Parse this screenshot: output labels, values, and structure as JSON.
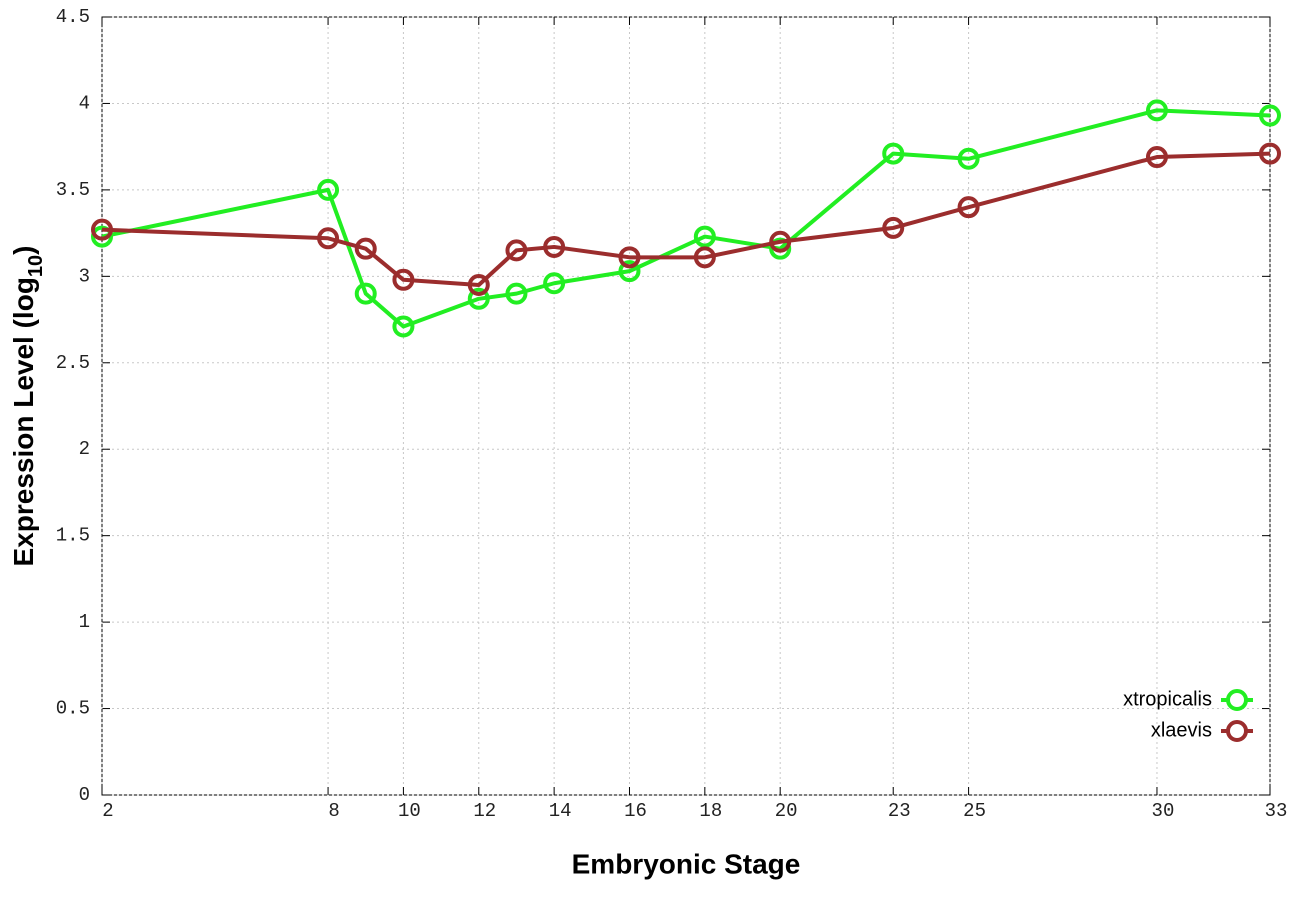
{
  "chart_data": {
    "type": "line",
    "x_label": "Embryonic Stage",
    "y_label": [
      "Expression Level (log",
      "10",
      ")"
    ],
    "x": [
      2,
      8,
      9,
      10,
      12,
      13,
      14,
      16,
      18,
      20,
      23,
      25,
      30,
      33
    ],
    "series": [
      {
        "name": "xtropicalis",
        "color": "#22ee22",
        "values": [
          3.23,
          3.5,
          2.9,
          2.71,
          2.87,
          2.9,
          2.96,
          3.03,
          3.23,
          3.16,
          3.71,
          3.68,
          3.96,
          3.93
        ]
      },
      {
        "name": "xlaevis",
        "color": "#9b2d2d",
        "values": [
          3.27,
          3.22,
          3.16,
          2.98,
          2.95,
          3.15,
          3.17,
          3.11,
          3.11,
          3.2,
          3.28,
          3.4,
          3.69,
          3.71
        ]
      }
    ],
    "xlim": [
      2,
      33
    ],
    "xticks": [
      2,
      8,
      10,
      12,
      14,
      16,
      18,
      20,
      23,
      25,
      30,
      33
    ],
    "ylim": [
      0,
      4.5
    ],
    "yticks": [
      0,
      0.5,
      1,
      1.5,
      2,
      2.5,
      3,
      3.5,
      4,
      4.5
    ],
    "grid": true,
    "legend": "lower right"
  }
}
